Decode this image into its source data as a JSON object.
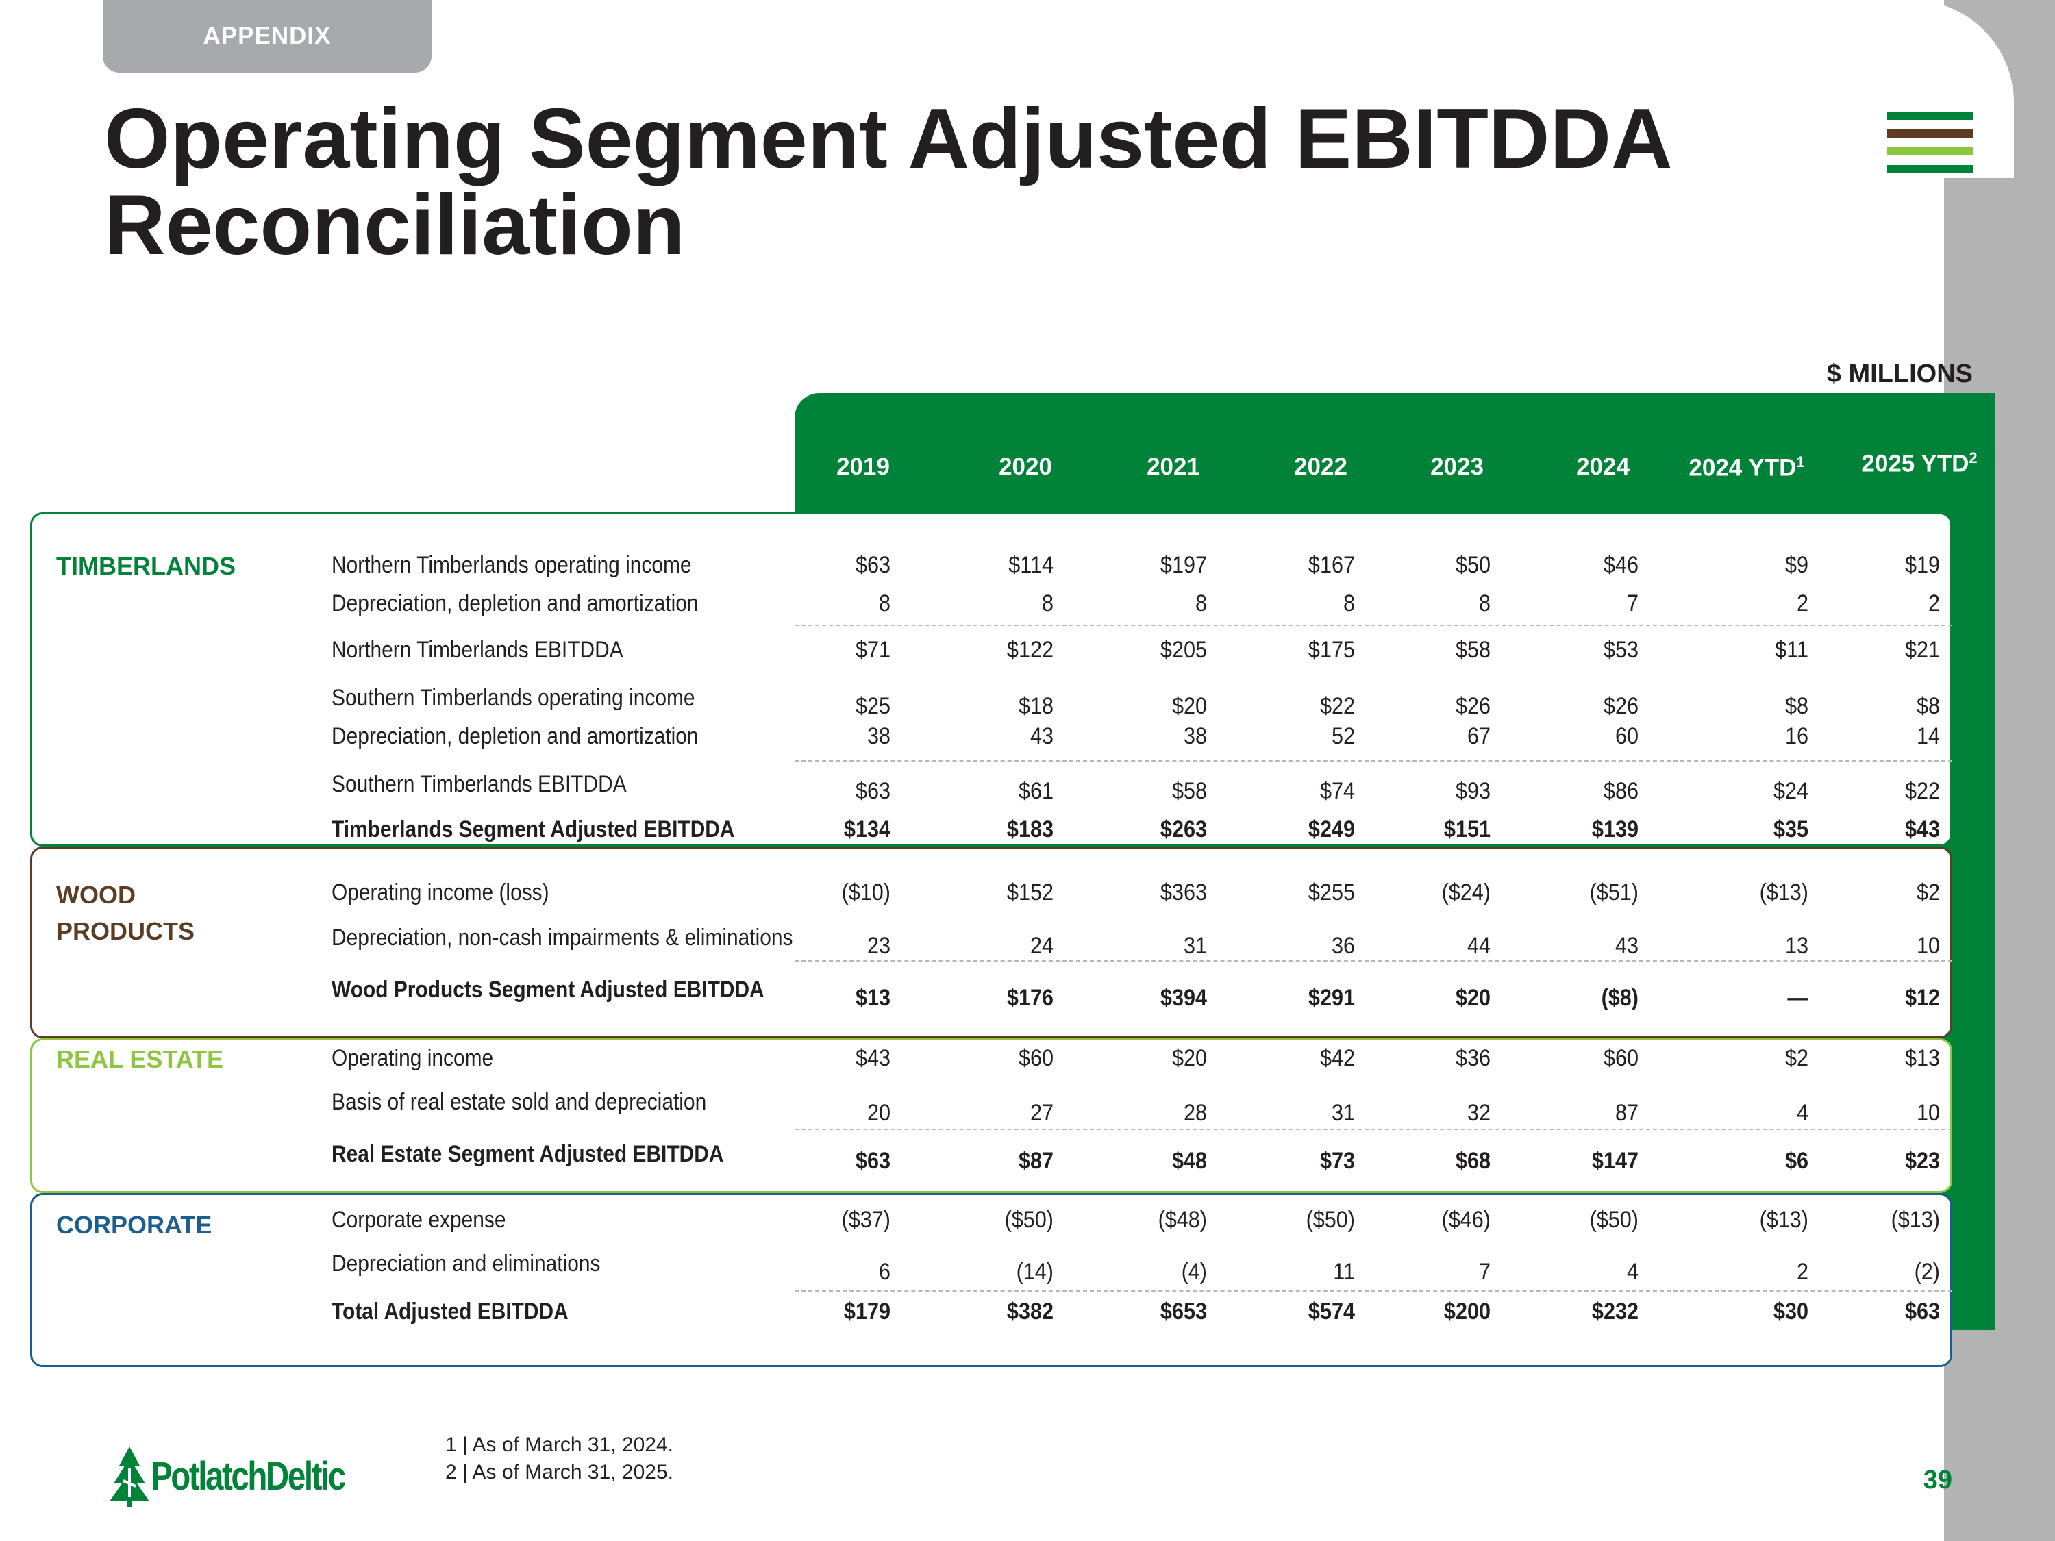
{
  "tag": "APPENDIX",
  "title_line1": "Operating Segment Adjusted EBITDDA",
  "title_line2": "Reconciliation",
  "units": "$ MILLIONS",
  "colors": {
    "green": "#008239",
    "brown": "#5c3d24",
    "lime": "#8dc63f",
    "blue": "#1b5e8f",
    "gray": "#a7a9ac"
  },
  "years": [
    {
      "label": "2019",
      "sup": ""
    },
    {
      "label": "2020",
      "sup": ""
    },
    {
      "label": "2021",
      "sup": ""
    },
    {
      "label": "2022",
      "sup": ""
    },
    {
      "label": "2023",
      "sup": ""
    },
    {
      "label": "2024",
      "sup": ""
    },
    {
      "label": "2024 YTD",
      "sup": "1"
    },
    {
      "label": "2025 YTD",
      "sup": "2"
    }
  ],
  "segments": {
    "timberlands": "TIMBERLANDS",
    "wood1": "WOOD",
    "wood2": "PRODUCTS",
    "real_estate": "REAL  ESTATE",
    "corporate": "CORPORATE"
  },
  "rows": [
    {
      "label": "Northern Timberlands operating income",
      "bold": false,
      "values": [
        "$63",
        "$114",
        "$197",
        "$167",
        "$50",
        "$46",
        "$9",
        "$19"
      ]
    },
    {
      "label": "Depreciation, depletion and amortization",
      "bold": false,
      "values": [
        "8",
        "8",
        "8",
        "8",
        "8",
        "7",
        "2",
        "2"
      ]
    },
    {
      "label": "Northern Timberlands EBITDDA",
      "bold": false,
      "values": [
        "$71",
        "$122",
        "$205",
        "$175",
        "$58",
        "$53",
        "$11",
        "$21"
      ]
    },
    {
      "label": "Southern Timberlands operating income",
      "bold": false,
      "values": [
        "$25",
        "$18",
        "$20",
        "$22",
        "$26",
        "$26",
        "$8",
        "$8"
      ]
    },
    {
      "label": "Depreciation, depletion and amortization",
      "bold": false,
      "values": [
        "38",
        "43",
        "38",
        "52",
        "67",
        "60",
        "16",
        "14"
      ]
    },
    {
      "label": "Southern Timberlands EBITDDA",
      "bold": false,
      "values": [
        "$63",
        "$61",
        "$58",
        "$74",
        "$93",
        "$86",
        "$24",
        "$22"
      ]
    },
    {
      "label": "Timberlands Segment Adjusted EBITDDA",
      "bold": true,
      "values": [
        "$134",
        "$183",
        "$263",
        "$249",
        "$151",
        "$139",
        "$35",
        "$43"
      ]
    },
    {
      "label": "Operating income (loss)",
      "bold": false,
      "values": [
        "($10)",
        "$152",
        "$363",
        "$255",
        "($24)",
        "($51)",
        "($13)",
        "$2"
      ]
    },
    {
      "label": "Depreciation, non-cash impairments & eliminations",
      "bold": false,
      "values": [
        "23",
        "24",
        "31",
        "36",
        "44",
        "43",
        "13",
        "10"
      ]
    },
    {
      "label": "Wood Products Segment Adjusted EBITDDA",
      "bold": true,
      "values": [
        "$13",
        "$176",
        "$394",
        "$291",
        "$20",
        "($8)",
        "—",
        "$12"
      ]
    },
    {
      "label": "Operating income",
      "bold": false,
      "values": [
        "$43",
        "$60",
        "$20",
        "$42",
        "$36",
        "$60",
        "$2",
        "$13"
      ]
    },
    {
      "label": "Basis of real estate sold and depreciation",
      "bold": false,
      "values": [
        "20",
        "27",
        "28",
        "31",
        "32",
        "87",
        "4",
        "10"
      ]
    },
    {
      "label": "Real Estate Segment Adjusted EBITDDA",
      "bold": true,
      "values": [
        "$63",
        "$87",
        "$48",
        "$73",
        "$68",
        "$147",
        "$6",
        "$23"
      ]
    },
    {
      "label": "Corporate expense",
      "bold": false,
      "values": [
        "($37)",
        "($50)",
        "($48)",
        "($50)",
        "($46)",
        "($50)",
        "($13)",
        "($13)"
      ]
    },
    {
      "label": "Depreciation and eliminations",
      "bold": false,
      "values": [
        "6",
        "(14)",
        "(4)",
        "11",
        "7",
        "4",
        "2",
        "(2)"
      ]
    },
    {
      "label": "Total Adjusted EBITDDA",
      "bold": true,
      "values": [
        "$179",
        "$382",
        "$653",
        "$574",
        "$200",
        "$232",
        "$30",
        "$63"
      ]
    }
  ],
  "footnote1": "1 | As of March 31, 2024.",
  "footnote2": "2 | As of March 31, 2025.",
  "logo_text": "PotlatchDeltic",
  "page_number": "39"
}
